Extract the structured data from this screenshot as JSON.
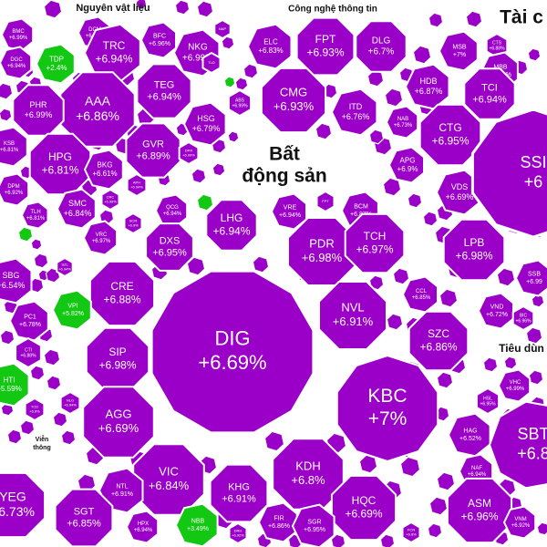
{
  "colors": {
    "up": "#9b00c8",
    "up_border": "#ffffff",
    "green": "#12c812",
    "background": "#ffffff",
    "sector_label": "#111111"
  },
  "sectors": {
    "materials": "Nguyên vật liệu",
    "tech": "Công nghệ thông tin",
    "finance": "Tài c",
    "real_estate": "Bất\nđộng sản",
    "consumer": "Tiêu dùn",
    "telecom": "Viễn\nthông"
  },
  "stocks": [
    {
      "code": "BMC",
      "pct": "+6.99%"
    },
    {
      "code": "DCM",
      "pct": "+6.94%"
    },
    {
      "code": "DGC",
      "pct": "+6.94%"
    },
    {
      "code": "TDP",
      "pct": "+2.4%"
    },
    {
      "code": "TRC",
      "pct": "+6.94%"
    },
    {
      "code": "BFC",
      "pct": "+6.96%"
    },
    {
      "code": "NKG",
      "pct": "+6.99%"
    },
    {
      "code": "NAP",
      "pct": ""
    },
    {
      "code": "TLD",
      "pct": ""
    },
    {
      "code": "AAA",
      "pct": "+6.86%"
    },
    {
      "code": "PHR",
      "pct": "+6.99%"
    },
    {
      "code": "TEG",
      "pct": "+6.94%"
    },
    {
      "code": "HSG",
      "pct": "+6.79%"
    },
    {
      "code": "ABS",
      "pct": "+6.99%"
    },
    {
      "code": "KSB",
      "pct": "+6.81%"
    },
    {
      "code": "HPG",
      "pct": "+6.81%"
    },
    {
      "code": "BKG",
      "pct": "+6.61%"
    },
    {
      "code": "GVR",
      "pct": "+6.89%"
    },
    {
      "code": "DPR",
      "pct": "+6.99%"
    },
    {
      "code": "DPM",
      "pct": "+6.92%"
    },
    {
      "code": "SMC",
      "pct": "+6.84%"
    },
    {
      "code": "CRC",
      "pct": "+6.99%"
    },
    {
      "code": "APH",
      "pct": "+6.94%"
    },
    {
      "code": "TLH",
      "pct": "+6.81%"
    },
    {
      "code": "ELC",
      "pct": "+6.83%"
    },
    {
      "code": "FPT",
      "pct": "+6.93%"
    },
    {
      "code": "DLG",
      "pct": "+6.7%"
    },
    {
      "code": "CMG",
      "pct": "+6.93%"
    },
    {
      "code": "ITD",
      "pct": "+6.76%"
    },
    {
      "code": "MSB",
      "pct": "+7%"
    },
    {
      "code": "CTS",
      "pct": "+6.88%"
    },
    {
      "code": "MBB",
      "pct": "+6.78%"
    },
    {
      "code": "HDB",
      "pct": "+6.87%"
    },
    {
      "code": "TCI",
      "pct": "+6.94%"
    },
    {
      "code": "NAB",
      "pct": "+6.73%"
    },
    {
      "code": "CTG",
      "pct": "+6.95%"
    },
    {
      "code": "APG",
      "pct": "+6.9%"
    },
    {
      "code": "VDS",
      "pct": "+6.69%"
    },
    {
      "code": "LPB",
      "pct": "+6.98%"
    },
    {
      "code": "SSB",
      "pct": "+6.99"
    },
    {
      "code": "VND",
      "pct": "+6.72%"
    },
    {
      "code": "BIC",
      "pct": "+6.96%"
    },
    {
      "code": "SSI",
      "pct": "+6"
    },
    {
      "code": "QCG",
      "pct": "+6.94%"
    },
    {
      "code": "LHG",
      "pct": "+6.94%"
    },
    {
      "code": "VRE",
      "pct": "+6.94%"
    },
    {
      "code": "FPT",
      "pct": ""
    },
    {
      "code": "BCM",
      "pct": "+6.87%"
    },
    {
      "code": "DXS",
      "pct": "+6.95%"
    },
    {
      "code": "PDR",
      "pct": "+6.98%"
    },
    {
      "code": "TCH",
      "pct": "+6.97%"
    },
    {
      "code": "CRE",
      "pct": "+6.88%"
    },
    {
      "code": "VPI",
      "pct": "+5.82%"
    },
    {
      "code": "NVL",
      "pct": "+6.91%"
    },
    {
      "code": "DIG",
      "pct": "+6.69%"
    },
    {
      "code": "SZC",
      "pct": "+6.86%"
    },
    {
      "code": "SIP",
      "pct": "+6.98%"
    },
    {
      "code": "KBC",
      "pct": "+7%"
    },
    {
      "code": "AGG",
      "pct": "+6.69%"
    },
    {
      "code": "VIC",
      "pct": "+6.84%"
    },
    {
      "code": "KDH",
      "pct": "+6.8%"
    },
    {
      "code": "KHG",
      "pct": "+6.91%"
    },
    {
      "code": "HQC",
      "pct": "+6.69%"
    },
    {
      "code": "NTL",
      "pct": "+6.91%"
    },
    {
      "code": "HPX",
      "pct": "+6.94%"
    },
    {
      "code": "NBB",
      "pct": "+3.49%"
    },
    {
      "code": "FIR",
      "pct": "+6.86%"
    },
    {
      "code": "SGR",
      "pct": "+6.95%"
    },
    {
      "code": "CCL",
      "pct": "+6.85%"
    },
    {
      "code": "SCR",
      "pct": "+6.9%"
    },
    {
      "code": "VRC",
      "pct": "+6.97%"
    },
    {
      "code": "SBG",
      "pct": "+6.54%"
    },
    {
      "code": "PC1",
      "pct": "+6.78%"
    },
    {
      "code": "CTI",
      "pct": "+6.88%"
    },
    {
      "code": "HTI",
      "pct": "+5.59%"
    },
    {
      "code": "TCD",
      "pct": "+6.6%"
    },
    {
      "code": "YEG",
      "pct": "+6.73%"
    },
    {
      "code": "SGT",
      "pct": "+6.85%"
    },
    {
      "code": "VHC",
      "pct": "+6.99%"
    },
    {
      "code": "HSL",
      "pct": "+6.95%"
    },
    {
      "code": "HAG",
      "pct": "+6.52%"
    },
    {
      "code": "NAF",
      "pct": "+6.94%"
    },
    {
      "code": "SBT",
      "pct": "+6.8"
    },
    {
      "code": "ASM",
      "pct": "+6.96%"
    },
    {
      "code": "VNM",
      "pct": "+6.92%"
    },
    {
      "code": "SZL",
      "pct": "+6.94%"
    },
    {
      "code": "NLG",
      "pct": "+6.94%"
    },
    {
      "code": "DRH",
      "pct": "+6.92%"
    },
    {
      "code": "FCN",
      "pct": "+6.8%"
    }
  ]
}
